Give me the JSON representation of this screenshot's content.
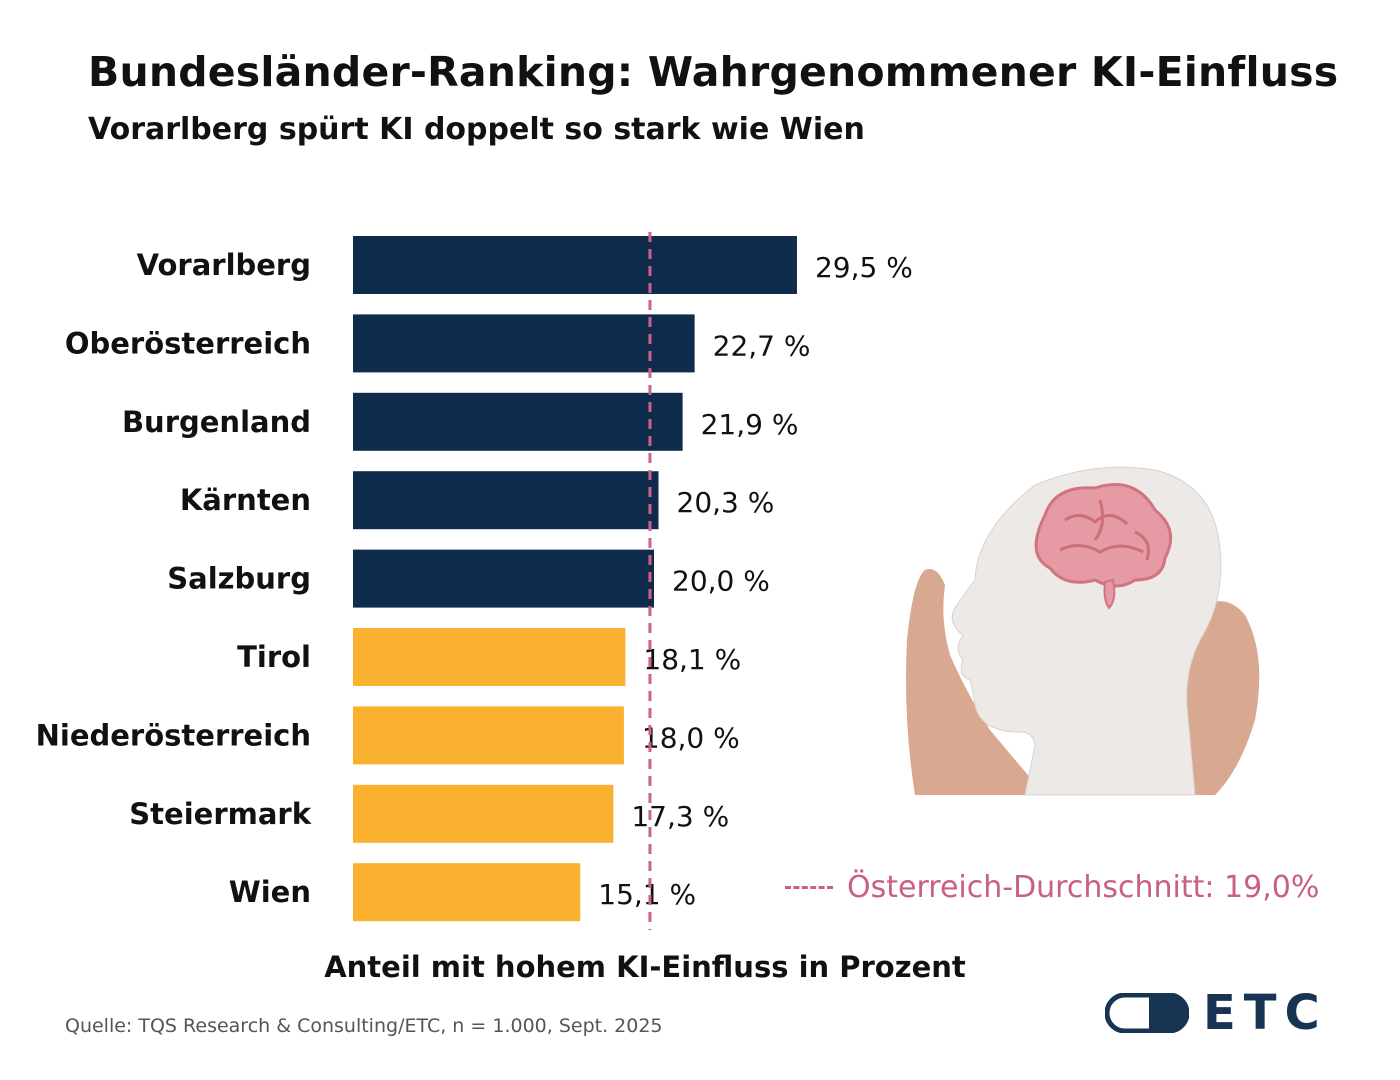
{
  "title": "Bundesländer-Ranking: Wahrgenommener KI-Einfluss",
  "subtitle": "Vorarlberg spürt KI doppelt so stark wie Wien",
  "source": "Quelle: TQS Research & Consulting/ETC, n = 1.000, Sept. 2025",
  "logo_text": "ETC",
  "colors": {
    "above_average": "#102c4c",
    "below_average": "#fbb130",
    "average_line": "#cf6288",
    "logo": "#173453"
  },
  "illustration_icons": [
    "hands-holding-head-icon",
    "brain-icon"
  ],
  "chart_data": {
    "type": "bar",
    "orientation": "horizontal",
    "categories": [
      "Vorarlberg",
      "Oberösterreich",
      "Burgenland",
      "Kärnten",
      "Salzburg",
      "Tirol",
      "Niederösterreich",
      "Steiermark",
      "Wien"
    ],
    "values": [
      29.5,
      22.7,
      21.9,
      20.3,
      20.0,
      18.1,
      18.0,
      17.3,
      15.1
    ],
    "value_labels": [
      "29,5 %",
      "22,7 %",
      "21,9 %",
      "20,3 %",
      "20,0 %",
      "18,1 %",
      "18,0 %",
      "17,3 %",
      "15,1 %"
    ],
    "xlabel": "Anteil mit hohem KI-Einfluss in Prozent",
    "ylabel": "",
    "xlim": [
      0,
      30
    ],
    "reference_line": {
      "value": 19.0,
      "label": "Österreich-Durchschnitt: 19,0%",
      "style": "dashed"
    },
    "grid": false
  }
}
